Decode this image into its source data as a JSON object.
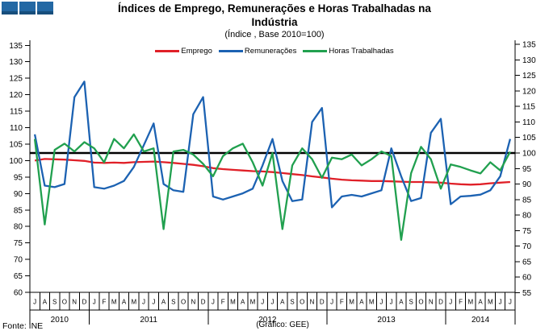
{
  "logo": {
    "square_color": "#2368A4",
    "square_count": 3
  },
  "title": {
    "line1": "Índices de Emprego, Remunerações e Horas Trabalhadas na",
    "line2": "Indústria",
    "subtitle": "(Índice , Base 2010=100)"
  },
  "legend": [
    {
      "label": "Emprego",
      "color": "#E02028"
    },
    {
      "label": "Remunerações",
      "color": "#1C62B2"
    },
    {
      "label": "Horas Trabalhadas",
      "color": "#21A04F"
    }
  ],
  "footer": {
    "source": "Fonte: INE",
    "credit": "(Gráfico: GEE)"
  },
  "chart_data": {
    "type": "line",
    "title": "Índices de Emprego, Remunerações e Horas Trabalhadas na Indústria",
    "subtitle": "(Índice , Base 2010=100)",
    "legend_position": "top",
    "grid": false,
    "reference_line": {
      "value": 100,
      "axis": "right",
      "color": "#000000"
    },
    "left_axis": {
      "min": 60,
      "max": 135,
      "step": 5,
      "ticks": [
        135,
        130,
        125,
        120,
        115,
        110,
        105,
        100,
        95,
        90,
        85,
        80,
        75,
        70,
        65,
        60
      ]
    },
    "right_axis": {
      "min": 55,
      "max": 135,
      "step": 5,
      "ticks": [
        135,
        130,
        125,
        120,
        115,
        110,
        105,
        100,
        95,
        90,
        85,
        80,
        75,
        70,
        65,
        60,
        55
      ]
    },
    "x_months": [
      "J",
      "A",
      "S",
      "O",
      "N",
      "D",
      "J",
      "F",
      "M",
      "A",
      "M",
      "J",
      "J",
      "A",
      "S",
      "O",
      "N",
      "D",
      "J",
      "F",
      "M",
      "A",
      "M",
      "J",
      "J",
      "A",
      "S",
      "O",
      "N",
      "D",
      "J",
      "F",
      "M",
      "A",
      "M",
      "J",
      "J",
      "A",
      "S",
      "O",
      "N",
      "D",
      "J",
      "F",
      "M",
      "A",
      "M",
      "J",
      "J"
    ],
    "x_years": [
      {
        "label": "2010",
        "span": [
          0,
          5
        ]
      },
      {
        "label": "2011",
        "span": [
          6,
          17
        ]
      },
      {
        "label": "2012",
        "span": [
          18,
          29
        ]
      },
      {
        "label": "2013",
        "span": [
          30,
          41
        ]
      },
      {
        "label": "2014",
        "span": [
          42,
          48
        ]
      }
    ],
    "series": [
      {
        "name": "Emprego",
        "color": "#E02028",
        "axis": "left",
        "values": [
          100.0,
          100.5,
          100.4,
          100.3,
          100.1,
          99.9,
          99.4,
          99.3,
          99.4,
          99.3,
          99.5,
          99.6,
          99.7,
          99.5,
          99.3,
          99.0,
          98.7,
          98.3,
          97.7,
          97.4,
          97.2,
          97.0,
          96.8,
          96.7,
          96.5,
          96.2,
          95.9,
          95.6,
          95.2,
          94.9,
          94.5,
          94.2,
          94.0,
          93.9,
          93.8,
          93.8,
          93.7,
          93.6,
          93.5,
          93.5,
          93.4,
          93.3,
          93.0,
          92.8,
          92.7,
          92.8,
          93.1,
          93.3,
          93.5
        ]
      },
      {
        "name": "Remunerações",
        "color": "#1C62B2",
        "axis": "right",
        "values": [
          106,
          89.5,
          89,
          90,
          118,
          123,
          89,
          88.5,
          89.5,
          91,
          95.5,
          102.5,
          109.5,
          90,
          88,
          87.5,
          112.5,
          118,
          86,
          85,
          86,
          87,
          88.5,
          96,
          104.5,
          91,
          84.5,
          85,
          110,
          114.5,
          82.5,
          86,
          86.5,
          86,
          87,
          88,
          101.5,
          92.5,
          84.5,
          85.5,
          106.5,
          111,
          83.5,
          86,
          86.2,
          86.6,
          88,
          92.5,
          104.5
        ]
      },
      {
        "name": "Horas Trabalhadas",
        "color": "#21A04F",
        "axis": "right",
        "values": [
          104.5,
          77,
          101,
          103,
          100.5,
          103.5,
          101.5,
          97,
          104.5,
          101.5,
          106,
          100.5,
          101.5,
          75.5,
          100.5,
          101,
          99.5,
          96.5,
          92.5,
          99,
          101.5,
          103,
          97,
          89.5,
          100,
          75.5,
          96,
          101.5,
          98,
          92,
          98.5,
          98,
          99.5,
          96,
          98,
          100.5,
          99,
          72,
          93.5,
          102,
          98,
          88.5,
          96.3,
          95.5,
          94.4,
          93.4,
          97,
          94.4,
          100.4
        ]
      }
    ]
  }
}
